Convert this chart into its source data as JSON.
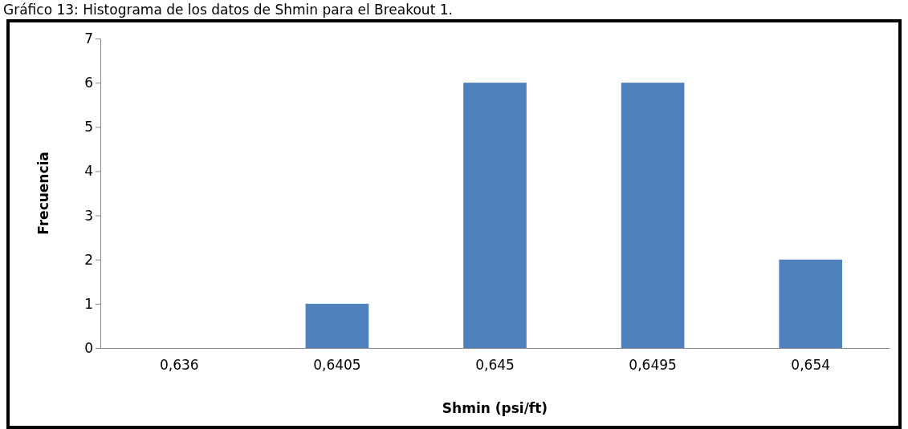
{
  "chart_data": {
    "type": "bar",
    "title": "Gráfico 13: Histograma de los datos de Shmin para el Breakout 1.",
    "xlabel": "Shmin (psi/ft)",
    "ylabel": "Frecuencia",
    "categories": [
      "0,636",
      "0,6405",
      "0,645",
      "0,6495",
      "0,654"
    ],
    "values": [
      0,
      1,
      6,
      6,
      2
    ],
    "color": "#4f81bd",
    "ylim": [
      0,
      7
    ],
    "yticks": [
      0,
      1,
      2,
      3,
      4,
      5,
      6,
      7
    ],
    "grid": false
  }
}
